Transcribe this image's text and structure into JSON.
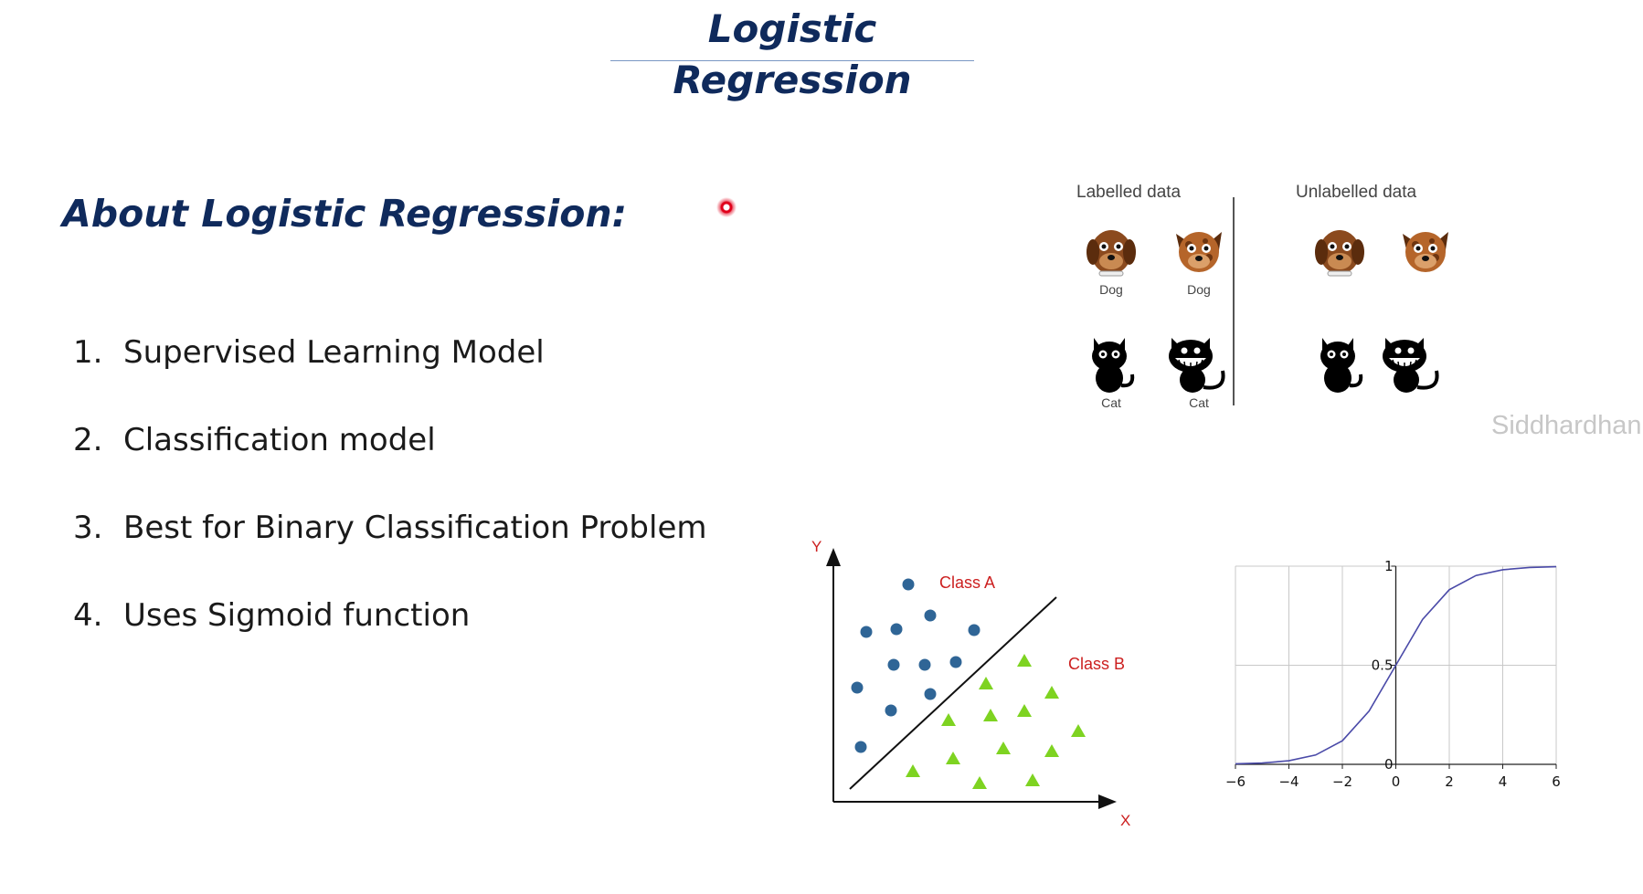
{
  "slide": {
    "title": "Logistic Regression",
    "subtitle": "About Logistic Regression:",
    "points": [
      {
        "num": "1.",
        "text": "Supervised Learning Model"
      },
      {
        "num": "2.",
        "text": "Classification model"
      },
      {
        "num": "3.",
        "text": "Best for Binary Classification Problem"
      },
      {
        "num": "4.",
        "text": "Uses Sigmoid function"
      }
    ],
    "watermark": "Siddhardhan"
  },
  "pets_figure": {
    "labelled_header": "Labelled data",
    "unlabelled_header": "Unlabelled data",
    "captions": {
      "dog1": "Dog",
      "dog2": "Dog",
      "cat1": "Cat",
      "cat2": "Cat"
    }
  },
  "scatter_figure": {
    "x_label": "X",
    "y_label": "Y",
    "class_a_label": "Class A",
    "class_b_label": "Class B",
    "colors": {
      "class_a": "#2f6596",
      "class_b": "#7ed321",
      "label": "#cc1f1f"
    }
  },
  "chart_data": {
    "type": "line",
    "title": "",
    "xlabel": "",
    "ylabel": "",
    "xlim": [
      -6,
      6
    ],
    "ylim": [
      0,
      1
    ],
    "x_ticks": [
      "−6",
      "−4",
      "−2",
      "0",
      "2",
      "4",
      "6"
    ],
    "y_ticks": [
      "0",
      "0.5",
      "1"
    ],
    "grid": true,
    "series": [
      {
        "x": [
          -6,
          -5,
          -4,
          -3,
          -2,
          -1,
          0,
          1,
          2,
          3,
          4,
          5,
          6
        ],
        "y": [
          0.0025,
          0.0067,
          0.018,
          0.047,
          0.119,
          0.269,
          0.5,
          0.731,
          0.881,
          0.953,
          0.982,
          0.9933,
          0.9975
        ]
      }
    ],
    "line_color": "#4a4aa8"
  }
}
